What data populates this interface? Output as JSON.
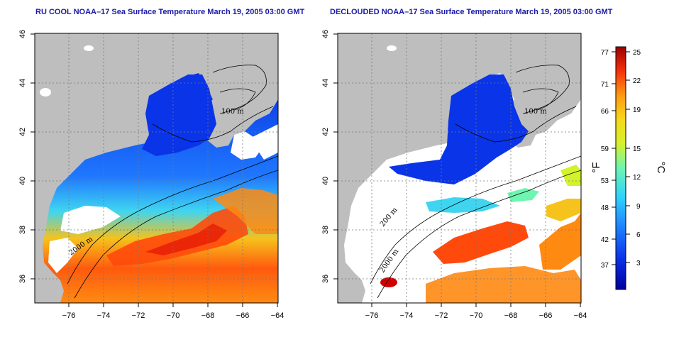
{
  "panels": [
    {
      "title": "RU COOL NOAA–17 Sea Surface Temperature March 19, 2005 03:00 GMT"
    },
    {
      "title": "DECLOUDED NOAA–17 Sea Surface Temperature March 19, 2005 03:00 GMT"
    }
  ],
  "axes": {
    "lat_ticks": [
      "46",
      "44",
      "42",
      "40",
      "38",
      "36"
    ],
    "lon_ticks": [
      "−76",
      "−74",
      "−72",
      "−70",
      "−68",
      "−66",
      "−64"
    ]
  },
  "contour_labels": {
    "c100": "100 m",
    "c200": "200 m",
    "c2000": "2000 m"
  },
  "colorbar": {
    "fahrenheit_ticks": [
      "77",
      "71",
      "66",
      "59",
      "53",
      "48",
      "42",
      "37"
    ],
    "celsius_ticks": [
      "25",
      "22",
      "19",
      "15",
      "12",
      "9",
      "6",
      "3"
    ],
    "unit_f": "°F",
    "unit_c": "°C"
  },
  "colors": {
    "land": "#bebebe",
    "nodata": "#ffffff",
    "scale": [
      "#0000aa",
      "#0a3cf0",
      "#1f86ff",
      "#2ad3ff",
      "#55f2c0",
      "#b8f23a",
      "#f4e81c",
      "#ffa312",
      "#ff4f0e",
      "#cf0000",
      "#8a0000"
    ]
  }
}
